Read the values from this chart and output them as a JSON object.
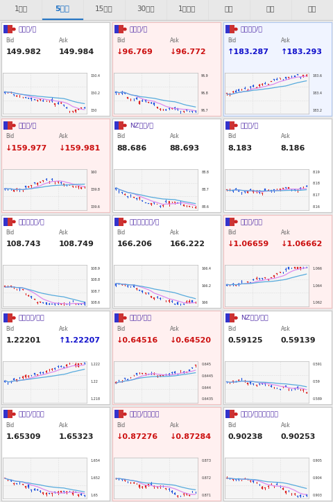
{
  "tabs": [
    "1分足",
    "5分足",
    "15分足",
    "30分足",
    "1時間足",
    "日足",
    "週足",
    "月足"
  ],
  "active_tab": 1,
  "tab_color": "#1a6fc4",
  "bg_color": "#e8e8e8",
  "pairs": [
    {
      "name": "米ドル/円",
      "flag": "us",
      "bid": "149.982",
      "ask": "149.984",
      "bid_arrow": "",
      "ask_arrow": "",
      "bid_color": "#222222",
      "ask_color": "#222222",
      "card_bg": "#ffffff",
      "border_color": "#c8c8c8",
      "y_labels": [
        "150.4",
        "150.2",
        "150"
      ],
      "trend": "down",
      "seed": 10
    },
    {
      "name": "豪ドル/円",
      "flag": "au",
      "bid": "96.769",
      "ask": "96.772",
      "bid_arrow": "↓",
      "ask_arrow": "↓",
      "bid_color": "#cc1111",
      "ask_color": "#cc1111",
      "card_bg": "#fff0f0",
      "border_color": "#f0c0c0",
      "y_labels": [
        "96.9",
        "96.8",
        "96.7"
      ],
      "trend": "down",
      "seed": 20
    },
    {
      "name": "英ポンド/円",
      "flag": "gb",
      "bid": "183.287",
      "ask": "183.293",
      "bid_arrow": "↑",
      "ask_arrow": "↑",
      "bid_color": "#1111cc",
      "ask_color": "#1111cc",
      "card_bg": "#f0f4ff",
      "border_color": "#b0c8f0",
      "y_labels": [
        "183.6",
        "183.4",
        "183.2"
      ],
      "trend": "up",
      "seed": 30
    },
    {
      "name": "ユーロ/円",
      "flag": "eu",
      "bid": "159.977",
      "ask": "159.981",
      "bid_arrow": "↓",
      "ask_arrow": "↓",
      "bid_color": "#cc1111",
      "ask_color": "#cc1111",
      "card_bg": "#fff0f0",
      "border_color": "#f0c0c0",
      "y_labels": [
        "160",
        "159.8",
        "159.6"
      ],
      "trend": "up_down",
      "seed": 40
    },
    {
      "name": "NZドル/円",
      "flag": "nz",
      "bid": "88.686",
      "ask": "88.693",
      "bid_arrow": "",
      "ask_arrow": "",
      "bid_color": "#222222",
      "ask_color": "#222222",
      "card_bg": "#ffffff",
      "border_color": "#c8c8c8",
      "y_labels": [
        "88.8",
        "88.7",
        "88.6"
      ],
      "trend": "down",
      "seed": 50
    },
    {
      "name": "ランド/円",
      "flag": "za",
      "bid": "8.183",
      "ask": "8.186",
      "bid_arrow": "",
      "ask_arrow": "",
      "bid_color": "#222222",
      "ask_color": "#222222",
      "card_bg": "#ffffff",
      "border_color": "#c8c8c8",
      "y_labels": [
        "8.19",
        "8.18",
        "8.17",
        "8.16"
      ],
      "trend": "volatile",
      "seed": 60
    },
    {
      "name": "カナダドル/円",
      "flag": "ca",
      "bid": "108.743",
      "ask": "108.749",
      "bid_arrow": "",
      "ask_arrow": "",
      "bid_color": "#222222",
      "ask_color": "#222222",
      "card_bg": "#ffffff",
      "border_color": "#c8c8c8",
      "y_labels": [
        "108.9",
        "108.8",
        "108.7",
        "108.6"
      ],
      "trend": "down",
      "seed": 70
    },
    {
      "name": "スイスフラン/円",
      "flag": "ch",
      "bid": "166.206",
      "ask": "166.222",
      "bid_arrow": "",
      "ask_arrow": "",
      "bid_color": "#222222",
      "ask_color": "#222222",
      "card_bg": "#ffffff",
      "border_color": "#c8c8c8",
      "y_labels": [
        "166.4",
        "166.2",
        "166"
      ],
      "trend": "down",
      "seed": 80
    },
    {
      "name": "ユーロ/ドル",
      "flag": "eu",
      "bid": "1.06659",
      "ask": "1.06662",
      "bid_arrow": "↓",
      "ask_arrow": "↓",
      "bid_color": "#cc1111",
      "ask_color": "#cc1111",
      "card_bg": "#fff0f0",
      "border_color": "#f0c0c0",
      "y_labels": [
        "1.066",
        "1.064",
        "1.062"
      ],
      "trend": "up",
      "seed": 90
    },
    {
      "name": "英ポンド/ドル",
      "flag": "gb",
      "bid": "1.22201",
      "ask": "1.22207",
      "bid_arrow": "",
      "ask_arrow": "↑",
      "bid_color": "#222222",
      "ask_color": "#1111cc",
      "card_bg": "#ffffff",
      "border_color": "#c8c8c8",
      "y_labels": [
        "1.222",
        "1.22",
        "1.218"
      ],
      "trend": "up",
      "seed": 100
    },
    {
      "name": "豪ドル/ドル",
      "flag": "au",
      "bid": "0.64516",
      "ask": "0.64520",
      "bid_arrow": "↓",
      "ask_arrow": "↓",
      "bid_color": "#cc1111",
      "ask_color": "#cc1111",
      "card_bg": "#fff0f0",
      "border_color": "#f0c0c0",
      "y_labels": [
        "0.645",
        "0.6445",
        "0.644",
        "0.6435"
      ],
      "trend": "up",
      "seed": 110
    },
    {
      "name": "NZドル/ドル",
      "flag": "nz",
      "bid": "0.59125",
      "ask": "0.59139",
      "bid_arrow": "",
      "ask_arrow": "",
      "bid_color": "#222222",
      "ask_color": "#222222",
      "card_bg": "#ffffff",
      "border_color": "#c8c8c8",
      "y_labels": [
        "0.591",
        "0.59",
        "0.589"
      ],
      "trend": "down",
      "seed": 120
    },
    {
      "name": "ユーロ/豪ドル",
      "flag": "eu",
      "bid": "1.65309",
      "ask": "1.65323",
      "bid_arrow": "",
      "ask_arrow": "",
      "bid_color": "#222222",
      "ask_color": "#222222",
      "card_bg": "#ffffff",
      "border_color": "#c8c8c8",
      "y_labels": [
        "1.654",
        "1.652",
        "1.65"
      ],
      "trend": "down",
      "seed": 130
    },
    {
      "name": "ユーロ/英ポンド",
      "flag": "eu",
      "bid": "0.87276",
      "ask": "0.87284",
      "bid_arrow": "↓",
      "ask_arrow": "↓",
      "bid_color": "#cc1111",
      "ask_color": "#cc1111",
      "card_bg": "#fff0f0",
      "border_color": "#f0c0c0",
      "y_labels": [
        "0.873",
        "0.872",
        "0.871"
      ],
      "trend": "down",
      "seed": 140
    },
    {
      "name": "米ドル/スイスフラン",
      "flag": "us",
      "bid": "0.90238",
      "ask": "0.90253",
      "bid_arrow": "",
      "ask_arrow": "",
      "bid_color": "#222222",
      "ask_color": "#222222",
      "card_bg": "#ffffff",
      "border_color": "#c8c8c8",
      "y_labels": [
        "0.905",
        "0.904",
        "0.903"
      ],
      "trend": "down",
      "seed": 150
    }
  ]
}
